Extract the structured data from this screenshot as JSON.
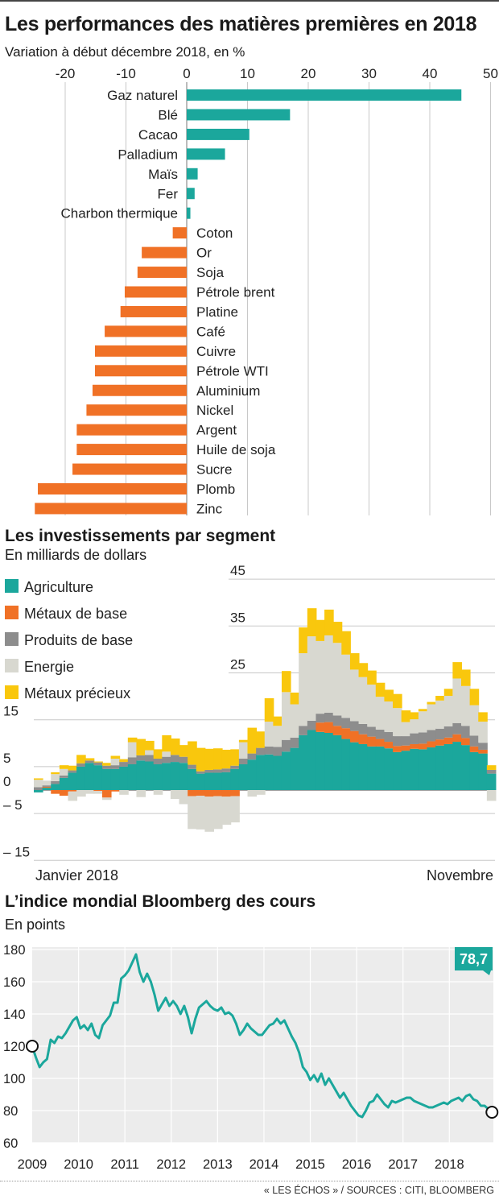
{
  "title": "Les performances des matières premières en 2018",
  "subtitle": "Variation à début décembre 2018, en %",
  "section2_title": "Les investissements par segment",
  "section2_subtitle": "En milliards de dollars",
  "section3_title": "L’indice mondial Bloomberg des cours",
  "section3_subtitle": "En points",
  "source": "« LES ÉCHOS » / SOURCES : CITI, BLOOMBERG",
  "colors": {
    "teal": "#1ba79c",
    "orange": "#f07126",
    "gray": "#8d8d8d",
    "lightgray": "#d8d8d0",
    "yellow": "#f9c70d",
    "grid": "#c8c8c8",
    "panel": "#ececec"
  },
  "chart_data": [
    {
      "type": "bar",
      "orientation": "horizontal",
      "title": "Les performances des matières premières en 2018",
      "subtitle": "Variation à début décembre 2018, en %",
      "x_ticks": [
        -20,
        -10,
        0,
        10,
        20,
        30,
        40,
        50
      ],
      "x_tick_labels": [
        "-20",
        "-10",
        "0",
        "10",
        "20",
        "30",
        "40",
        "50"
      ],
      "xlim": [
        -25,
        50
      ],
      "categories": [
        "Gaz naturel",
        "Blé",
        "Cacao",
        "Palladium",
        "Maïs",
        "Fer",
        "Charbon thermique",
        "Coton",
        "Or",
        "Soja",
        "Pétrole brent",
        "Platine",
        "Café",
        "Cuivre",
        "Pétrole WTI",
        "Aluminium",
        "Nickel",
        "Argent",
        "Huile de soja",
        "Sucre",
        "Plomb",
        "Zinc"
      ],
      "values": [
        45.2,
        17.0,
        10.3,
        6.3,
        1.8,
        1.3,
        0.6,
        -2.3,
        -7.4,
        -8.1,
        -10.2,
        -10.9,
        -13.5,
        -15.1,
        -15.1,
        -15.5,
        -16.5,
        -18.1,
        -18.1,
        -18.8,
        -24.5,
        -25.0
      ]
    },
    {
      "type": "bar",
      "stacked": true,
      "title": "Les investissements par segment",
      "ylabel": "En milliards de dollars",
      "y_ticks": [
        45,
        35,
        25,
        15,
        5,
        0,
        -5,
        -15
      ],
      "y_tick_labels": [
        "45",
        "35",
        "25",
        "15",
        "5",
        "0",
        "– 5",
        "– 15"
      ],
      "ylim": [
        -15,
        45
      ],
      "x_start_label": "Janvier 2018",
      "x_end_label": "Novembre",
      "legend": [
        "Agriculture",
        "Métaux de base",
        "Produits de base",
        "Energie",
        "Métaux précieux"
      ],
      "series": [
        {
          "name": "Agriculture",
          "values": [
            -0.5,
            0.5,
            1.3,
            2.6,
            3.7,
            5.0,
            5.8,
            5.3,
            4.5,
            4.5,
            5.0,
            5.5,
            6.3,
            6.1,
            5.5,
            5.8,
            6.0,
            5.8,
            4.5,
            3.5,
            3.7,
            3.7,
            3.8,
            4.5,
            5.5,
            6.5,
            7.5,
            7.6,
            7.3,
            8.2,
            9.0,
            11.7,
            12.8,
            12.4,
            12.2,
            11.7,
            10.9,
            10.2,
            9.8,
            9.3,
            9.3,
            8.9,
            8.1,
            8.4,
            8.8,
            8.7,
            9.1,
            9.5,
            9.8,
            10.3,
            9.6,
            8.1,
            7.8,
            3.5
          ]
        },
        {
          "name": "Métaux de base",
          "values": [
            0.0,
            0.2,
            -0.8,
            -1.2,
            -0.3,
            0.0,
            0.0,
            -0.2,
            -1.6,
            -0.3,
            0.0,
            0.0,
            0.0,
            0.0,
            0.0,
            0.0,
            0.0,
            0.0,
            -1.3,
            -1.2,
            -1.4,
            -1.3,
            -1.4,
            -1.3,
            0.0,
            0.0,
            0.0,
            0.0,
            0.0,
            0.0,
            0.0,
            0.0,
            0.0,
            2.0,
            2.3,
            2.0,
            2.3,
            2.4,
            2.1,
            2.1,
            1.6,
            1.4,
            1.3,
            1.1,
            1.0,
            1.2,
            1.3,
            1.3,
            1.4,
            1.6,
            1.5,
            1.2,
            0.8,
            0.0
          ]
        },
        {
          "name": "Produits de base",
          "values": [
            0.6,
            0.3,
            0.6,
            0.5,
            0.5,
            0.7,
            0.5,
            0.6,
            0.7,
            0.8,
            1.0,
            1.5,
            1.1,
            1.4,
            1.2,
            1.3,
            1.5,
            1.3,
            0.9,
            0.5,
            0.6,
            0.7,
            0.8,
            0.7,
            1.2,
            1.3,
            1.5,
            1.7,
            1.9,
            2.5,
            2.2,
            2.0,
            2.0,
            1.9,
            2.0,
            2.2,
            2.2,
            2.1,
            2.2,
            2.1,
            2.0,
            2.1,
            2.1,
            2.0,
            2.3,
            2.4,
            2.4,
            2.3,
            2.4,
            2.4,
            2.6,
            2.3,
            1.5,
            0.8
          ]
        },
        {
          "name": "Energie",
          "values": [
            1.6,
            1.0,
            1.5,
            1.4,
            -2.0,
            -1.4,
            -0.8,
            -0.6,
            -0.5,
            1.4,
            -1.0,
            3.2,
            -1.5,
            1.0,
            -1.0,
            1.1,
            -1.9,
            -3.0,
            -7.0,
            -7.2,
            -7.5,
            -7.0,
            -6.0,
            -5.6,
            3.5,
            -1.4,
            -1.0,
            5.3,
            4.5,
            10.2,
            7.1,
            15.5,
            18.0,
            15.5,
            16.5,
            15.5,
            13.5,
            11.0,
            10.0,
            9.0,
            7.0,
            6.5,
            6.0,
            3.0,
            3.0,
            4.5,
            5.5,
            6.0,
            6.5,
            9.5,
            8.5,
            6.5,
            4.5,
            -2.3
          ]
        },
        {
          "name": "Métaux précieux",
          "values": [
            0.3,
            0.0,
            0.4,
            0.8,
            1.0,
            1.8,
            0.5,
            0.2,
            0.6,
            0.6,
            0.6,
            1.0,
            3.5,
            2.0,
            2.0,
            3.5,
            3.5,
            2.5,
            5.0,
            5.0,
            4.5,
            4.5,
            4.0,
            3.5,
            0.5,
            5.5,
            3.5,
            5.0,
            2.0,
            4.5,
            2.5,
            5.5,
            6.0,
            4.5,
            5.5,
            4.5,
            5.0,
            3.5,
            3.0,
            3.0,
            3.0,
            2.5,
            3.0,
            2.5,
            1.5,
            0.5,
            0.5,
            1.0,
            1.5,
            3.5,
            3.5,
            3.5,
            2.0,
            1.0
          ]
        }
      ]
    },
    {
      "type": "line",
      "title": "L’indice mondial Bloomberg des cours",
      "ylabel": "En points",
      "x_ticks": [
        2009,
        2010,
        2011,
        2012,
        2013,
        2014,
        2015,
        2016,
        2017,
        2018
      ],
      "x_tick_labels": [
        "2009",
        "2010",
        "2011",
        "2012",
        "2013",
        "2014",
        "2015",
        "2016",
        "2017",
        "2018"
      ],
      "y_ticks": [
        60,
        80,
        100,
        120,
        140,
        160,
        180
      ],
      "y_tick_labels": [
        "60",
        "80",
        "100",
        "120",
        "140",
        "160",
        "180"
      ],
      "xlim": [
        2009.0,
        2018.95
      ],
      "ylim": [
        60,
        180
      ],
      "annotation_last": "78,7",
      "x": [
        2009.0,
        2009.08,
        2009.16,
        2009.24,
        2009.32,
        2009.4,
        2009.48,
        2009.56,
        2009.64,
        2009.72,
        2009.8,
        2009.88,
        2009.96,
        2010.04,
        2010.12,
        2010.2,
        2010.28,
        2010.36,
        2010.44,
        2010.52,
        2010.6,
        2010.68,
        2010.76,
        2010.84,
        2010.92,
        2011.0,
        2011.08,
        2011.16,
        2011.24,
        2011.32,
        2011.4,
        2011.48,
        2011.56,
        2011.64,
        2011.72,
        2011.8,
        2011.88,
        2011.96,
        2012.04,
        2012.12,
        2012.2,
        2012.28,
        2012.36,
        2012.44,
        2012.52,
        2012.6,
        2012.68,
        2012.76,
        2012.84,
        2012.92,
        2013.0,
        2013.08,
        2013.16,
        2013.24,
        2013.32,
        2013.4,
        2013.48,
        2013.56,
        2013.64,
        2013.72,
        2013.8,
        2013.88,
        2013.96,
        2014.04,
        2014.12,
        2014.2,
        2014.28,
        2014.36,
        2014.44,
        2014.52,
        2014.6,
        2014.68,
        2014.76,
        2014.84,
        2014.92,
        2015.0,
        2015.08,
        2015.16,
        2015.24,
        2015.32,
        2015.4,
        2015.48,
        2015.56,
        2015.64,
        2015.72,
        2015.8,
        2015.88,
        2015.96,
        2016.04,
        2016.12,
        2016.2,
        2016.28,
        2016.36,
        2016.44,
        2016.52,
        2016.6,
        2016.68,
        2016.76,
        2016.84,
        2016.92,
        2017.0,
        2017.08,
        2017.16,
        2017.24,
        2017.32,
        2017.4,
        2017.48,
        2017.56,
        2017.64,
        2017.72,
        2017.8,
        2017.88,
        2017.96,
        2018.04,
        2018.12,
        2018.2,
        2018.28,
        2018.36,
        2018.44,
        2018.52,
        2018.6,
        2018.68,
        2018.76,
        2018.84,
        2018.92
      ],
      "y": [
        120,
        113,
        107,
        110,
        112,
        124,
        122,
        126,
        125,
        128,
        132,
        136,
        138,
        131,
        133,
        130,
        134,
        127,
        125,
        133,
        136,
        139,
        147,
        147,
        162,
        164,
        167,
        172,
        177,
        166,
        160,
        165,
        160,
        152,
        142,
        146,
        150,
        145,
        148,
        145,
        140,
        145,
        138,
        128,
        137,
        144,
        146,
        148,
        145,
        143,
        142,
        144,
        140,
        141,
        139,
        134,
        127,
        130,
        134,
        131,
        129,
        127,
        127,
        130,
        133,
        134,
        137,
        134,
        136,
        131,
        126,
        122,
        116,
        107,
        104,
        99,
        102,
        98,
        103,
        96,
        100,
        96,
        92,
        88,
        91,
        87,
        83,
        80,
        77,
        76,
        80,
        85,
        86,
        90,
        87,
        84,
        82,
        86,
        85,
        86,
        87,
        88,
        88,
        86,
        85,
        84,
        83,
        82,
        82,
        83,
        84,
        85,
        84,
        86,
        87,
        88,
        86,
        89,
        90,
        87,
        86,
        83,
        83,
        81,
        79
      ]
    }
  ]
}
